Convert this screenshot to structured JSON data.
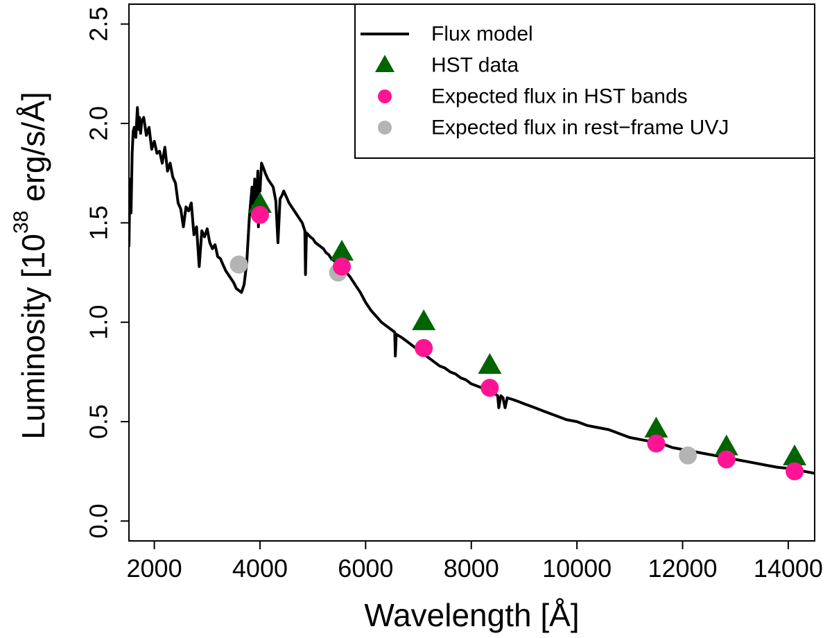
{
  "chart_data": {
    "type": "line",
    "xlabel": "Wavelength [Å]",
    "ylabel": "Luminosity [10^38 erg/s/Å]",
    "ylabel_parts": {
      "prefix": "Luminosity [10",
      "exponent": "38",
      "suffix": " erg/s/Å]"
    },
    "xlim": [
      1520,
      14500
    ],
    "ylim": [
      -0.1,
      2.6
    ],
    "x_ticks": [
      2000,
      4000,
      6000,
      8000,
      10000,
      12000,
      14000
    ],
    "x_tick_labels": [
      "2000",
      "4000",
      "6000",
      "8000",
      "10000",
      "12000",
      "14000"
    ],
    "y_ticks": [
      0.0,
      0.5,
      1.0,
      1.5,
      2.0,
      2.5
    ],
    "y_tick_labels": [
      "0.0",
      "0.5",
      "1.0",
      "1.5",
      "2.0",
      "2.5"
    ],
    "legend_position": "top-right",
    "legend": [
      {
        "label": "Flux model",
        "symbol": "line",
        "color": "#000000"
      },
      {
        "label": "HST data",
        "symbol": "triangle",
        "color": "#006400"
      },
      {
        "label": "Expected flux in HST bands",
        "symbol": "circle",
        "color": "#ff1493"
      },
      {
        "label": "Expected flux in rest−frame UVJ",
        "symbol": "circle",
        "color": "#b4b4b4"
      }
    ],
    "series": [
      {
        "name": "Flux model",
        "kind": "line",
        "color": "#000000",
        "points": [
          [
            1520,
            1.38
          ],
          [
            1540,
            1.72
          ],
          [
            1560,
            1.55
          ],
          [
            1580,
            1.85
          ],
          [
            1600,
            1.96
          ],
          [
            1620,
            1.98
          ],
          [
            1650,
            1.93
          ],
          [
            1680,
            2.08
          ],
          [
            1700,
            1.97
          ],
          [
            1720,
            2.03
          ],
          [
            1740,
            1.95
          ],
          [
            1760,
            2.01
          ],
          [
            1800,
            2.03
          ],
          [
            1850,
            1.94
          ],
          [
            1900,
            1.98
          ],
          [
            1950,
            1.87
          ],
          [
            2000,
            1.91
          ],
          [
            2050,
            1.85
          ],
          [
            2100,
            1.86
          ],
          [
            2150,
            1.8
          ],
          [
            2200,
            1.88
          ],
          [
            2250,
            1.76
          ],
          [
            2300,
            1.8
          ],
          [
            2350,
            1.73
          ],
          [
            2400,
            1.7
          ],
          [
            2450,
            1.6
          ],
          [
            2500,
            1.57
          ],
          [
            2550,
            1.48
          ],
          [
            2600,
            1.58
          ],
          [
            2650,
            1.56
          ],
          [
            2700,
            1.6
          ],
          [
            2750,
            1.44
          ],
          [
            2800,
            1.48
          ],
          [
            2850,
            1.28
          ],
          [
            2900,
            1.46
          ],
          [
            2950,
            1.43
          ],
          [
            3000,
            1.47
          ],
          [
            3050,
            1.4
          ],
          [
            3100,
            1.37
          ],
          [
            3150,
            1.39
          ],
          [
            3200,
            1.33
          ],
          [
            3250,
            1.32
          ],
          [
            3300,
            1.29
          ],
          [
            3350,
            1.26
          ],
          [
            3400,
            1.24
          ],
          [
            3450,
            1.22
          ],
          [
            3500,
            1.2
          ],
          [
            3550,
            1.17
          ],
          [
            3600,
            1.16
          ],
          [
            3650,
            1.15
          ],
          [
            3700,
            1.19
          ],
          [
            3750,
            1.3
          ],
          [
            3800,
            1.53
          ],
          [
            3850,
            1.68
          ],
          [
            3880,
            1.57
          ],
          [
            3900,
            1.72
          ],
          [
            3930,
            1.58
          ],
          [
            3960,
            1.76
          ],
          [
            3970,
            1.48
          ],
          [
            3990,
            1.72
          ],
          [
            4000,
            1.66
          ],
          [
            4030,
            1.8
          ],
          [
            4060,
            1.78
          ],
          [
            4100,
            1.75
          ],
          [
            4150,
            1.72
          ],
          [
            4200,
            1.7
          ],
          [
            4250,
            1.68
          ],
          [
            4300,
            1.61
          ],
          [
            4340,
            1.4
          ],
          [
            4380,
            1.62
          ],
          [
            4420,
            1.64
          ],
          [
            4450,
            1.66
          ],
          [
            4500,
            1.63
          ],
          [
            4550,
            1.6
          ],
          [
            4600,
            1.58
          ],
          [
            4650,
            1.56
          ],
          [
            4700,
            1.54
          ],
          [
            4750,
            1.52
          ],
          [
            4800,
            1.5
          ],
          [
            4850,
            1.46
          ],
          [
            4861,
            1.24
          ],
          [
            4880,
            1.45
          ],
          [
            4950,
            1.43
          ],
          [
            5000,
            1.42
          ],
          [
            5050,
            1.4
          ],
          [
            5100,
            1.39
          ],
          [
            5150,
            1.38
          ],
          [
            5200,
            1.37
          ],
          [
            5250,
            1.35
          ],
          [
            5300,
            1.34
          ],
          [
            5350,
            1.32
          ],
          [
            5400,
            1.31
          ],
          [
            5450,
            1.3
          ],
          [
            5500,
            1.29
          ],
          [
            5550,
            1.27
          ],
          [
            5600,
            1.26
          ],
          [
            5700,
            1.23
          ],
          [
            5800,
            1.19
          ],
          [
            5900,
            1.15
          ],
          [
            6000,
            1.1
          ],
          [
            6100,
            1.06
          ],
          [
            6200,
            1.03
          ],
          [
            6300,
            1.0
          ],
          [
            6400,
            0.98
          ],
          [
            6500,
            0.96
          ],
          [
            6550,
            0.95
          ],
          [
            6563,
            0.83
          ],
          [
            6580,
            0.94
          ],
          [
            6700,
            0.92
          ],
          [
            6800,
            0.9
          ],
          [
            6900,
            0.88
          ],
          [
            7000,
            0.86
          ],
          [
            7100,
            0.84
          ],
          [
            7200,
            0.82
          ],
          [
            7300,
            0.8
          ],
          [
            7400,
            0.78
          ],
          [
            7500,
            0.77
          ],
          [
            7600,
            0.75
          ],
          [
            7700,
            0.74
          ],
          [
            7800,
            0.72
          ],
          [
            7900,
            0.71
          ],
          [
            8000,
            0.69
          ],
          [
            8100,
            0.68
          ],
          [
            8200,
            0.67
          ],
          [
            8300,
            0.66
          ],
          [
            8400,
            0.65
          ],
          [
            8500,
            0.63
          ],
          [
            8520,
            0.57
          ],
          [
            8560,
            0.63
          ],
          [
            8600,
            0.62
          ],
          [
            8640,
            0.57
          ],
          [
            8680,
            0.62
          ],
          [
            8800,
            0.61
          ],
          [
            8900,
            0.6
          ],
          [
            9000,
            0.59
          ],
          [
            9200,
            0.57
          ],
          [
            9400,
            0.55
          ],
          [
            9600,
            0.53
          ],
          [
            9800,
            0.51
          ],
          [
            10000,
            0.5
          ],
          [
            10200,
            0.48
          ],
          [
            10400,
            0.47
          ],
          [
            10600,
            0.46
          ],
          [
            10800,
            0.44
          ],
          [
            11000,
            0.42
          ],
          [
            11200,
            0.41
          ],
          [
            11400,
            0.4
          ],
          [
            11600,
            0.39
          ],
          [
            11800,
            0.37
          ],
          [
            12000,
            0.36
          ],
          [
            12200,
            0.35
          ],
          [
            12400,
            0.34
          ],
          [
            12600,
            0.33
          ],
          [
            12800,
            0.32
          ],
          [
            13000,
            0.31
          ],
          [
            13200,
            0.3
          ],
          [
            13400,
            0.29
          ],
          [
            13600,
            0.28
          ],
          [
            13800,
            0.27
          ],
          [
            14000,
            0.265
          ],
          [
            14200,
            0.255
          ],
          [
            14500,
            0.24
          ]
        ]
      },
      {
        "name": "HST data",
        "kind": "scatter",
        "marker": "triangle",
        "color": "#006400",
        "x": [
          4000,
          5550,
          7100,
          8350,
          11500,
          12830,
          14120
        ],
        "y": [
          1.59,
          1.35,
          1.0,
          0.78,
          0.46,
          0.37,
          0.32
        ]
      },
      {
        "name": "Expected flux in HST bands",
        "kind": "scatter",
        "marker": "circle",
        "color": "#ff1493",
        "x": [
          4000,
          5550,
          7100,
          8350,
          11500,
          12830,
          14120
        ],
        "y": [
          1.54,
          1.28,
          0.87,
          0.67,
          0.39,
          0.31,
          0.25
        ]
      },
      {
        "name": "Expected flux in rest−frame UVJ",
        "kind": "scatter",
        "marker": "circle",
        "color": "#b4b4b4",
        "x": [
          3600,
          5480,
          12100
        ],
        "y": [
          1.29,
          1.25,
          0.33
        ]
      }
    ]
  }
}
